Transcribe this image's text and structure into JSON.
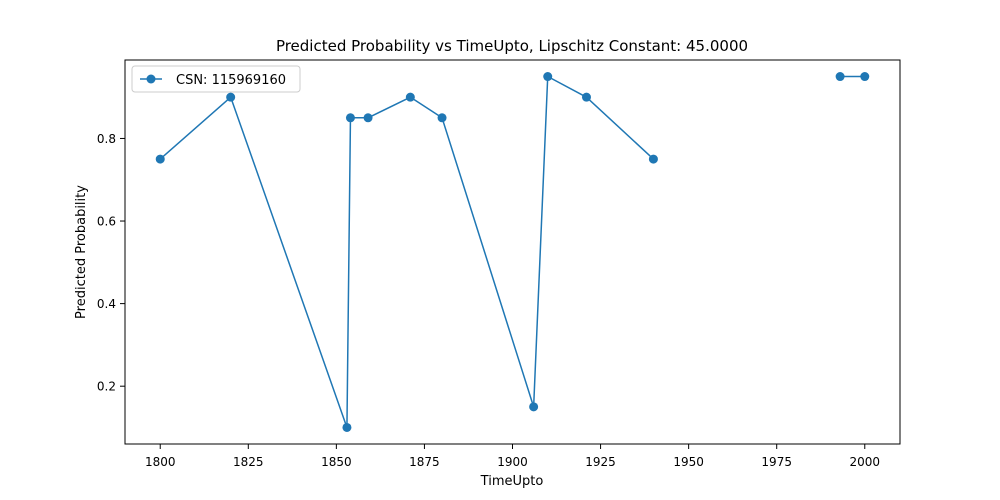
{
  "chart_data": {
    "type": "line",
    "title": "Predicted Probability vs TimeUpto, Lipschitz Constant: 45.0000",
    "xlabel": "TimeUpto",
    "ylabel": "Predicted Probability",
    "xlim": [
      1790,
      2010
    ],
    "ylim": [
      0.06,
      0.99
    ],
    "xticks": [
      1800,
      1825,
      1850,
      1875,
      1900,
      1925,
      1950,
      1975,
      2000
    ],
    "yticks": [
      0.2,
      0.4,
      0.6,
      0.8
    ],
    "ytick_labels": [
      "0.2",
      "0.4",
      "0.6",
      "0.8"
    ],
    "grid": false,
    "legend_position": "top-left",
    "series": [
      {
        "name": "CSN: 115969160",
        "color": "#1f77b4",
        "marker": "circle",
        "segments": [
          [
            {
              "x": 1800,
              "y": 0.75
            },
            {
              "x": 1820,
              "y": 0.9
            },
            {
              "x": 1853,
              "y": 0.1
            },
            {
              "x": 1854,
              "y": 0.85
            },
            {
              "x": 1859,
              "y": 0.85
            },
            {
              "x": 1871,
              "y": 0.9
            },
            {
              "x": 1880,
              "y": 0.85
            },
            {
              "x": 1906,
              "y": 0.15
            },
            {
              "x": 1910,
              "y": 0.95
            },
            {
              "x": 1921,
              "y": 0.9
            },
            {
              "x": 1940,
              "y": 0.75
            }
          ],
          [
            {
              "x": 1993,
              "y": 0.95
            },
            {
              "x": 2000,
              "y": 0.95
            }
          ]
        ]
      }
    ]
  }
}
